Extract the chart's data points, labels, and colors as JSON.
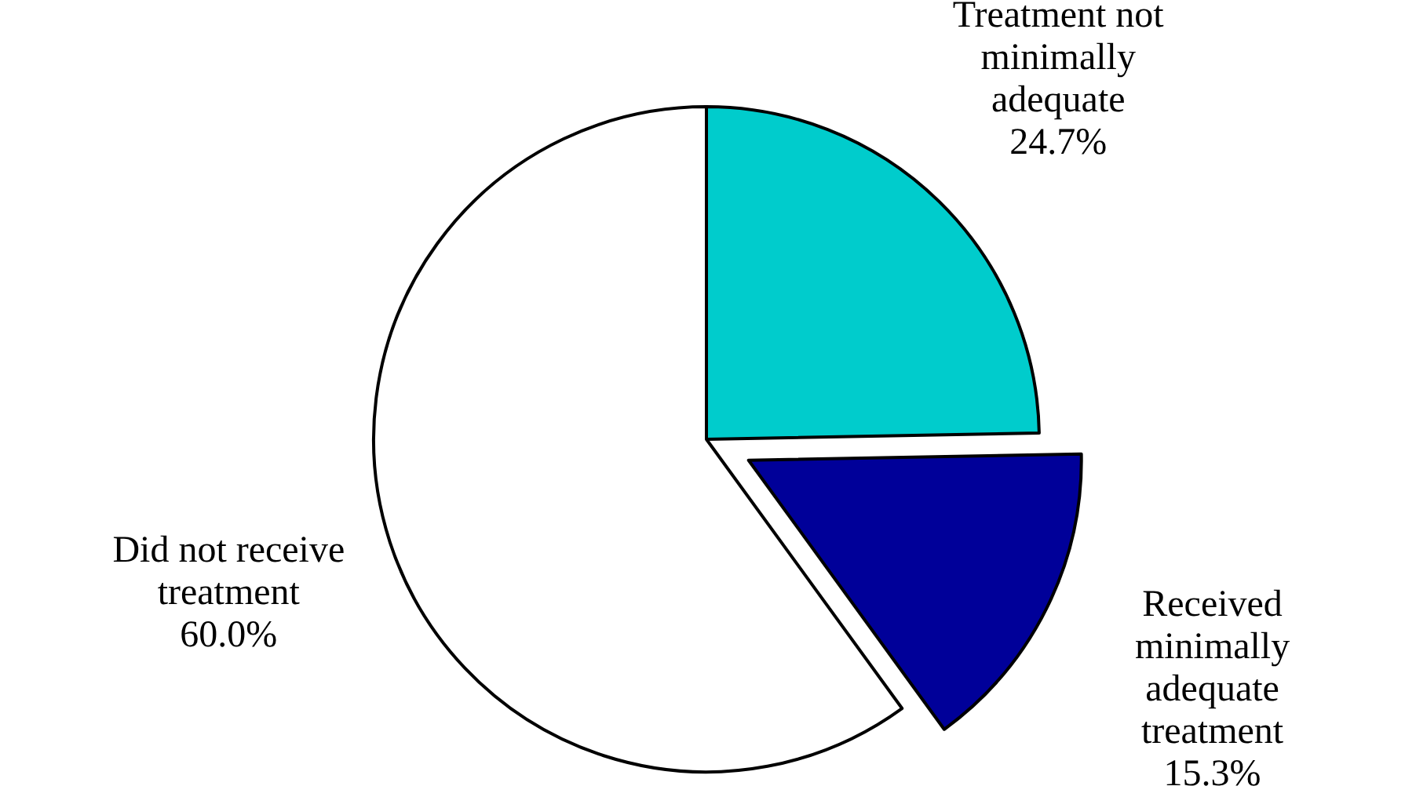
{
  "chart_data": {
    "type": "pie",
    "categories": [
      "Treatment not minimally adequate",
      "Received minimally adequate treatment",
      "Did not receive treatment"
    ],
    "values": [
      24.7,
      15.3,
      60.0
    ],
    "colors": [
      "#00cccc",
      "#000099",
      "#ffffff"
    ],
    "value_labels": [
      "24.7%",
      "15.3%",
      "60.0%"
    ]
  }
}
